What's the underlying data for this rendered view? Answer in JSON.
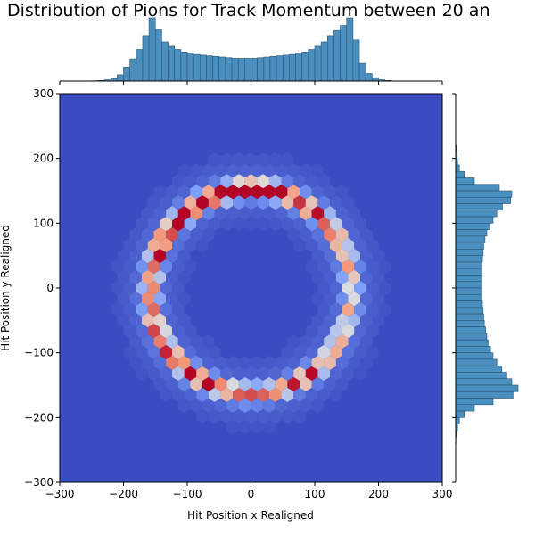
{
  "chart_data": {
    "type": "joint-hexbin",
    "title": "Distribution of Pions for Track Momentum between 20 an",
    "xlabel": "Hit Position x Realigned",
    "ylabel": "Hit Position y Realigned",
    "xlim": [
      -300,
      300
    ],
    "ylim": [
      -300,
      300
    ],
    "xticks": [
      -300,
      -200,
      -100,
      0,
      100,
      200,
      300
    ],
    "yticks": [
      -300,
      -200,
      -100,
      0,
      100,
      200,
      300
    ],
    "x_tick_labels": [
      "−300",
      "−200",
      "−100",
      "0",
      "100",
      "200",
      "300"
    ],
    "y_tick_labels": [
      "−300",
      "−200",
      "−100",
      "0",
      "100",
      "200",
      "300"
    ],
    "colormap": "coolwarm",
    "ring": {
      "center_x": 0,
      "center_y": -5,
      "radius": 158,
      "width_sigma": 9
    },
    "marginal_x": {
      "type": "histogram",
      "bin_centers": [
        -245,
        -235,
        -225,
        -215,
        -205,
        -195,
        -185,
        -175,
        -165,
        -155,
        -145,
        -135,
        -125,
        -115,
        -105,
        -95,
        -85,
        -75,
        -65,
        -55,
        -45,
        -35,
        -25,
        -15,
        -5,
        5,
        15,
        25,
        35,
        45,
        55,
        65,
        75,
        85,
        95,
        105,
        115,
        125,
        135,
        145,
        155,
        165,
        175,
        185,
        195,
        205,
        215
      ],
      "counts": [
        0.5,
        1,
        2,
        4,
        10,
        22,
        35,
        50,
        72,
        100,
        82,
        62,
        55,
        50,
        46,
        44,
        42,
        41,
        40,
        39,
        38,
        37,
        36,
        36,
        36,
        36,
        37,
        38,
        39,
        40,
        41,
        42,
        44,
        46,
        50,
        55,
        62,
        72,
        80,
        88,
        100,
        65,
        28,
        12,
        5,
        2,
        1
      ]
    },
    "marginal_y": {
      "type": "histogram",
      "bin_centers": [
        215,
        205,
        195,
        185,
        175,
        165,
        155,
        145,
        135,
        125,
        115,
        105,
        95,
        85,
        75,
        65,
        55,
        45,
        35,
        25,
        15,
        5,
        -5,
        -15,
        -25,
        -35,
        -45,
        -55,
        -65,
        -75,
        -85,
        -95,
        -105,
        -115,
        -125,
        -135,
        -145,
        -155,
        -165,
        -175,
        -185,
        -195,
        -205,
        -215,
        -225,
        -235
      ],
      "counts": [
        1,
        2,
        3,
        6,
        14,
        30,
        70,
        90,
        88,
        75,
        66,
        60,
        55,
        50,
        47,
        45,
        44,
        43,
        42,
        42,
        42,
        42,
        42,
        42,
        43,
        44,
        45,
        46,
        48,
        50,
        52,
        56,
        60,
        66,
        74,
        82,
        90,
        100,
        92,
        60,
        30,
        14,
        6,
        3,
        1,
        0.5
      ]
    },
    "colors": {
      "bar_fill": "#4a8fbd",
      "bar_edge": "#2a5576",
      "background_low": "#3b4cc0"
    }
  }
}
